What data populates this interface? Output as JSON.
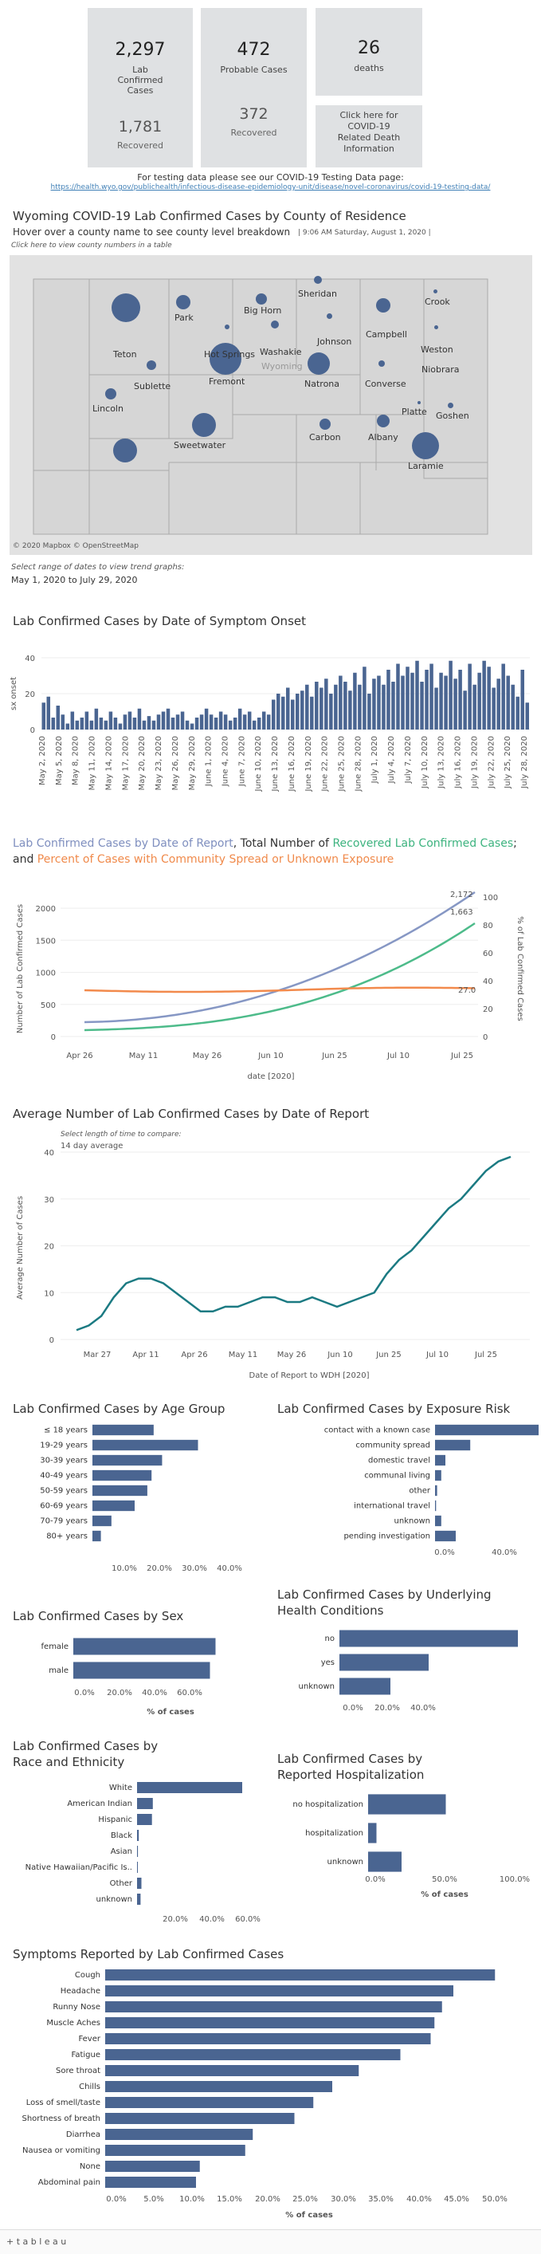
{
  "stats": {
    "lab_confirmed_value": "2,297",
    "lab_confirmed_label": "Lab Confirmed Cases",
    "lab_recovered_value": "1,781",
    "lab_recovered_label": "Recovered",
    "probable_value": "472",
    "probable_label": "Probable Cases",
    "probable_recovered_value": "372",
    "probable_recovered_label": "Recovered",
    "deaths_value": "26",
    "deaths_label": "deaths",
    "death_info_label": "Click here for COVID-19 Related Death Information"
  },
  "testing": {
    "text": "For testing data please see our COVID-19 Testing Data page:",
    "url": "https://health.wyo.gov/publichealth/infectious-disease-epidemiology-unit/disease/novel-coronavirus/covid-19-testing-data/"
  },
  "map": {
    "title": "Wyoming COVID-19 Lab Confirmed Cases by County of Residence",
    "hover_hint": "Hover over a county name to see county level breakdown",
    "timestamp": "9:06 AM Saturday, August 1, 2020",
    "table_hint": "Click here to view county numbers in a table",
    "credit": "© 2020 Mapbox © OpenStreetMap",
    "state_label": "Wyoming",
    "counties": [
      "Sheridan",
      "Crook",
      "Park",
      "Big Horn",
      "Campbell",
      "Johnson",
      "Teton",
      "Hot Springs",
      "Washakie",
      "Weston",
      "Fremont",
      "Natrona",
      "Converse",
      "Niobrara",
      "Sublette",
      "Lincoln",
      "Platte",
      "Goshen",
      "Sweetwater",
      "Carbon",
      "Albany",
      "Laramie"
    ]
  },
  "date_select": {
    "hint": "Select range of dates to view trend graphs:",
    "range": "May 1, 2020 to July 29, 2020"
  },
  "onset_chart": {
    "title": "Lab Confirmed Cases by Date of Symptom Onset",
    "ylabel": "sx onset",
    "ticks": [
      "0",
      "20",
      "40"
    ],
    "dates": [
      "May 2, 2020",
      "May 5, 2020",
      "May 8, 2020",
      "May 11, 2020",
      "May 14, 2020",
      "May 17, 2020",
      "May 20, 2020",
      "May 23, 2020",
      "May 26, 2020",
      "May 29, 2020",
      "June 1, 2020",
      "June 4, 2020",
      "June 7, 2020",
      "June 10, 2020",
      "June 13, 2020",
      "June 16, 2020",
      "June 19, 2020",
      "June 22, 2020",
      "June 25, 2020",
      "June 28, 2020",
      "July 1, 2020",
      "July 4, 2020",
      "July 7, 2020",
      "July 10, 2020",
      "July 13, 2020",
      "July 16, 2020",
      "July 19, 2020",
      "July 22, 2020",
      "July 25, 2020",
      "July 28, 2020"
    ]
  },
  "report_chart": {
    "title_a": "Lab Confirmed Cases by Date of Report",
    "title_b": ", Total Number of ",
    "title_c": "Recovered Lab Confirmed Cases",
    "title_d": "; and ",
    "title_e": "Percent of Cases with Community Spread or Unknown Exposure",
    "ylabel_left": "Number of Lab Confirmed Cases",
    "ylabel_right": "% of Lab Confirmed Cases",
    "xlabel": "date [2020]",
    "left_ticks": [
      "0",
      "500",
      "1000",
      "1500",
      "2000"
    ],
    "right_ticks": [
      "0",
      "20",
      "40",
      "60",
      "80",
      "100"
    ],
    "x_ticks": [
      "Apr 26",
      "May 11",
      "May 26",
      "Jun 10",
      "Jun 25",
      "Jul 10",
      "Jul 25"
    ],
    "label_total": "2,172",
    "label_recovered": "1,663",
    "label_percent": "27.0"
  },
  "avg_chart": {
    "title": "Average Number of Lab Confirmed Cases by Date of Report",
    "hint": "Select length of time to compare:",
    "select_value": "14 day average",
    "ylabel": "Average Number of Cases",
    "xlabel": "Date of Report to WDH [2020]",
    "y_ticks": [
      "0",
      "10",
      "20",
      "30",
      "40"
    ],
    "x_ticks": [
      "Mar 27",
      "Apr 11",
      "Apr 26",
      "May 11",
      "May 26",
      "Jun 10",
      "Jun 25",
      "Jul 10",
      "Jul 25"
    ]
  },
  "age_chart": {
    "title": "Lab Confirmed Cases by Age Group",
    "categories": [
      "≤ 18 years",
      "19-29 years",
      "30-39 years",
      "40-49 years",
      "50-59 years",
      "60-69 years",
      "70-79 years",
      "80+ years"
    ],
    "values": [
      14.5,
      25,
      16.5,
      14,
      13,
      10,
      4.5,
      2
    ],
    "ticks": [
      "10.0%",
      "20.0%",
      "30.0%",
      "40.0%"
    ]
  },
  "exposure_chart": {
    "title": "Lab Confirmed Cases by Exposure Risk",
    "categories": [
      "contact with a known case",
      "community spread",
      "domestic travel",
      "communal living",
      "other",
      "international travel",
      "unknown",
      "pending investigation"
    ],
    "values": [
      50,
      17,
      5,
      3,
      1,
      0.5,
      3,
      10
    ],
    "ticks": [
      "0.0%",
      "40.0%"
    ]
  },
  "sex_chart": {
    "title": "Lab Confirmed Cases by Sex",
    "categories": [
      "female",
      "male"
    ],
    "values": [
      51,
      49
    ],
    "ticks": [
      "0.0%",
      "20.0%",
      "40.0%",
      "60.0%"
    ],
    "xlabel": "% of cases"
  },
  "health_chart": {
    "title_line1": "Lab Confirmed Cases by Underlying",
    "title_line2": "Health Conditions",
    "categories": [
      "no",
      "yes",
      "unknown"
    ],
    "values": [
      56,
      28,
      16
    ],
    "ticks": [
      "0.0%",
      "20.0%",
      "40.0%"
    ]
  },
  "race_chart": {
    "title_line1": "Lab Confirmed Cases by",
    "title_line2": "Race and Ethnicity",
    "categories": [
      "White",
      "American Indian",
      "Hispanic",
      "Black",
      "Asian",
      "Native Hawaiian/Pacific Is..",
      "Other",
      "unknown"
    ],
    "values": [
      60,
      9,
      8.5,
      1,
      0.5,
      0.2,
      2.5,
      2
    ],
    "ticks": [
      "20.0%",
      "40.0%",
      "60.0%"
    ]
  },
  "hosp_chart": {
    "title_line1": "Lab Confirmed Cases by",
    "title_line2": "Reported Hospitalization",
    "categories": [
      "no hospitalization",
      "hospitalization",
      "unknown"
    ],
    "values": [
      65,
      7,
      28
    ],
    "ticks": [
      "0.0%",
      "50.0%",
      "100.0%"
    ],
    "xlabel": "% of cases"
  },
  "symptoms_chart": {
    "title": "Symptoms Reported by Lab Confirmed Cases",
    "categories": [
      "Cough",
      "Headache",
      "Runny Nose",
      "Muscle Aches",
      "Fever",
      "Fatigue",
      "Sore throat",
      "Chills",
      "Loss of smell/taste",
      "Shortness of breath",
      "Diarrhea",
      "Nausea or vomiting",
      "None",
      "Abdominal pain"
    ],
    "values": [
      51.5,
      46,
      44.5,
      43.5,
      43,
      39,
      33.5,
      30,
      27.5,
      25,
      19.5,
      18.5,
      12.5,
      12
    ],
    "ticks": [
      "0.0%",
      "5.0%",
      "10.0%",
      "15.0%",
      "20.0%",
      "25.0%",
      "30.0%",
      "35.0%",
      "40.0%",
      "45.0%",
      "50.0%"
    ],
    "xlabel": "% of cases"
  },
  "footer": {
    "brand": "+ t a b l e a u"
  },
  "colors": {
    "bar": "#4a6591",
    "total": "#8697c4",
    "recovered": "#4dbb8a",
    "percent": "#f28a4c",
    "avg": "#1b7a82"
  }
}
